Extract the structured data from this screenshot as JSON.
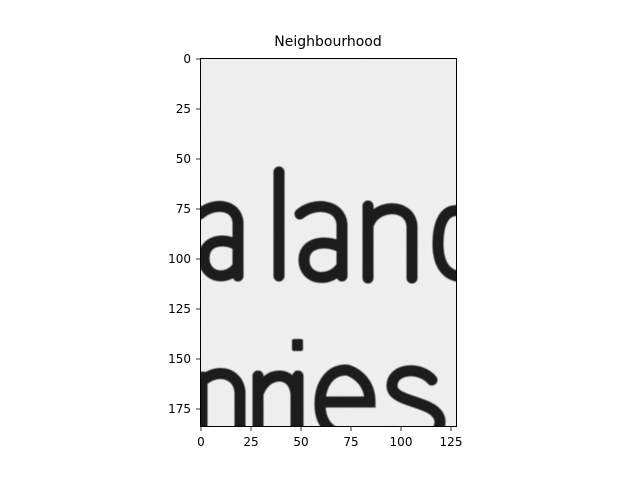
{
  "figure": {
    "title": "Neighbourhood"
  },
  "image": {
    "description_text_visible": [
      "aland",
      "nies"
    ],
    "background_color": "#f1f1f1",
    "text_color": "#1a1a1a"
  },
  "axes": {
    "x_ticks": [
      "0",
      "25",
      "50",
      "75",
      "100",
      "125"
    ],
    "y_ticks": [
      "0",
      "25",
      "50",
      "75",
      "100",
      "125",
      "150",
      "175"
    ],
    "x_range": [
      0,
      128
    ],
    "y_range": [
      0,
      184
    ]
  }
}
